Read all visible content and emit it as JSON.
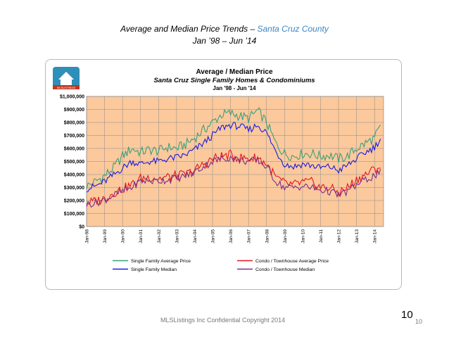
{
  "slide": {
    "title_prefix": "Average and Median Price Trends – ",
    "title_region": "Santa Cruz County",
    "subtitle": "Jan ’98 – Jun ’14",
    "footer": "MLSListings Inc Confidential Copyright 2014",
    "page_number": "10",
    "page_number_small": "10",
    "logo_text": "MLSLISTINGS"
  },
  "colors": {
    "plot_bg": "#fbc99c",
    "sf_avg": "#3aa07a",
    "sf_median": "#1a1ae0",
    "condo_avg": "#e8151b",
    "condo_median": "#7b2d8c"
  },
  "chart_data": {
    "type": "line",
    "title": "Average / Median Price",
    "subtitle1": "Santa Cruz Single Family Homes & Condominiums",
    "subtitle2": "Jan '98 - Jun '14",
    "xlabel": "",
    "ylabel": "",
    "ylim": [
      0,
      1000000
    ],
    "yticks": [
      "$0",
      "$100,000",
      "$200,000",
      "$300,000",
      "$400,000",
      "$500,000",
      "$600,000",
      "$700,000",
      "$800,000",
      "$900,000",
      "$1,000,000"
    ],
    "x_tick_labels": [
      "Jan-98",
      "Jan-99",
      "Jan-00",
      "Jan-01",
      "Jan-02",
      "Jan-03",
      "Jan-04",
      "Jan-05",
      "Jan-06",
      "Jan-07",
      "Jan-08",
      "Jan-09",
      "Jan-10",
      "Jan-11",
      "Jan-12",
      "Jan-13",
      "Jan-14"
    ],
    "x_tick_years": [
      1998,
      1999,
      2000,
      2001,
      2002,
      2003,
      2004,
      2005,
      2006,
      2007,
      2008,
      2009,
      2010,
      2011,
      2012,
      2013,
      2014
    ],
    "x_range": [
      1998,
      2014.5
    ],
    "grid": true,
    "legend_position": "bottom",
    "series": [
      {
        "name": "Single Family Average Price",
        "key": "sf_avg",
        "x": [
          1998.0,
          1998.5,
          1999.0,
          1999.5,
          2000.0,
          2000.5,
          2001.0,
          2001.5,
          2002.0,
          2002.5,
          2003.0,
          2003.5,
          2004.0,
          2004.5,
          2005.0,
          2005.5,
          2006.0,
          2006.5,
          2007.0,
          2007.5,
          2008.0,
          2008.5,
          2009.0,
          2009.5,
          2010.0,
          2010.5,
          2011.0,
          2011.5,
          2012.0,
          2012.5,
          2013.0,
          2013.5,
          2014.0,
          2014.4
        ],
        "values": [
          310000,
          345000,
          390000,
          450000,
          540000,
          600000,
          570000,
          590000,
          580000,
          610000,
          600000,
          630000,
          680000,
          740000,
          800000,
          860000,
          870000,
          850000,
          830000,
          890000,
          800000,
          640000,
          560000,
          540000,
          560000,
          560000,
          540000,
          550000,
          520000,
          540000,
          600000,
          640000,
          680000,
          780000
        ]
      },
      {
        "name": "Single Family Median",
        "key": "sf_median",
        "x": [
          1998.0,
          1998.5,
          1999.0,
          1999.5,
          2000.0,
          2000.5,
          2001.0,
          2001.5,
          2002.0,
          2002.5,
          2003.0,
          2003.5,
          2004.0,
          2004.5,
          2005.0,
          2005.5,
          2006.0,
          2006.5,
          2007.0,
          2007.5,
          2008.0,
          2008.5,
          2009.0,
          2009.5,
          2010.0,
          2010.5,
          2011.0,
          2011.5,
          2012.0,
          2012.5,
          2013.0,
          2013.5,
          2014.0,
          2014.4
        ],
        "values": [
          290000,
          310000,
          345000,
          395000,
          450000,
          500000,
          480000,
          500000,
          500000,
          520000,
          530000,
          550000,
          590000,
          640000,
          700000,
          760000,
          780000,
          770000,
          740000,
          780000,
          720000,
          580000,
          480000,
          460000,
          480000,
          470000,
          450000,
          460000,
          430000,
          470000,
          520000,
          570000,
          610000,
          690000
        ]
      },
      {
        "name": "Condo  /  Townhouse Average Price",
        "key": "condo_avg",
        "x": [
          1998.0,
          1998.5,
          1999.0,
          1999.5,
          2000.0,
          2000.5,
          2001.0,
          2001.5,
          2002.0,
          2002.5,
          2003.0,
          2003.5,
          2004.0,
          2004.5,
          2005.0,
          2005.5,
          2006.0,
          2006.5,
          2007.0,
          2007.5,
          2008.0,
          2008.5,
          2009.0,
          2009.5,
          2010.0,
          2010.5,
          2011.0,
          2011.5,
          2012.0,
          2012.5,
          2013.0,
          2013.5,
          2014.0,
          2014.4
        ],
        "values": [
          180000,
          195000,
          215000,
          260000,
          290000,
          320000,
          370000,
          380000,
          370000,
          380000,
          390000,
          400000,
          430000,
          480000,
          520000,
          540000,
          550000,
          530000,
          520000,
          530000,
          480000,
          380000,
          330000,
          320000,
          340000,
          340000,
          300000,
          300000,
          260000,
          300000,
          360000,
          400000,
          440000,
          470000
        ]
      },
      {
        "name": "Condo / Townhouse Median",
        "key": "condo_median",
        "x": [
          1998.0,
          1998.5,
          1999.0,
          1999.5,
          2000.0,
          2000.5,
          2001.0,
          2001.5,
          2002.0,
          2002.5,
          2003.0,
          2003.5,
          2004.0,
          2004.5,
          2005.0,
          2005.5,
          2006.0,
          2006.5,
          2007.0,
          2007.5,
          2008.0,
          2008.5,
          2009.0,
          2009.5,
          2010.0,
          2010.5,
          2011.0,
          2011.5,
          2012.0,
          2012.5,
          2013.0,
          2013.5,
          2014.0,
          2014.4
        ],
        "values": [
          170000,
          185000,
          205000,
          240000,
          270000,
          300000,
          350000,
          350000,
          350000,
          360000,
          370000,
          390000,
          420000,
          460000,
          500000,
          520000,
          530000,
          510000,
          500000,
          510000,
          460000,
          350000,
          300000,
          300000,
          310000,
          300000,
          280000,
          270000,
          240000,
          270000,
          320000,
          360000,
          390000,
          420000
        ]
      }
    ]
  }
}
